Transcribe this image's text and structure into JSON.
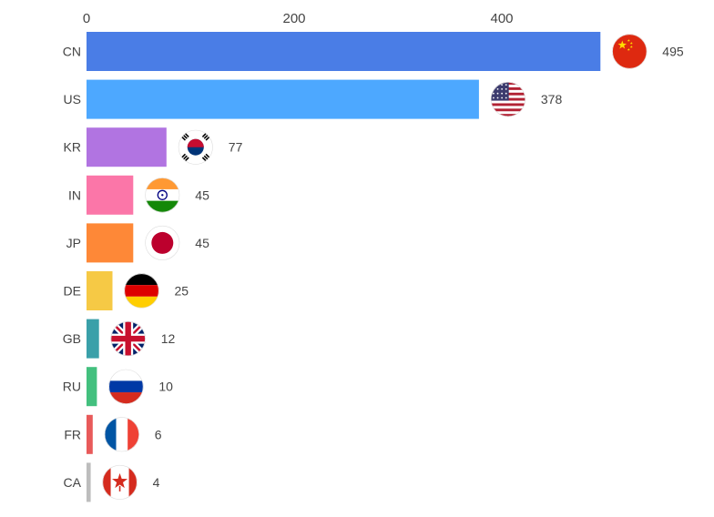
{
  "chart_data": {
    "type": "bar",
    "orientation": "horizontal",
    "title": "",
    "xlabel": "",
    "ylabel": "",
    "xlim": [
      0,
      495
    ],
    "x_ticks": [
      "0",
      "200",
      "400"
    ],
    "grid": false,
    "legend": "none",
    "categories": [
      "CN",
      "US",
      "KR",
      "IN",
      "JP",
      "DE",
      "GB",
      "RU",
      "FR",
      "CA"
    ],
    "values": [
      495,
      378,
      77,
      45,
      45,
      25,
      12,
      10,
      6,
      4
    ],
    "value_labels": [
      "495",
      "378",
      "77",
      "45",
      "45",
      "25",
      "12",
      "10",
      "6",
      "4"
    ],
    "colors": [
      "#4a7de6",
      "#4da8ff",
      "#b174e1",
      "#fb76a8",
      "#fe8837",
      "#f6c945",
      "#3aa0a9",
      "#43c07e",
      "#e85a5a",
      "#bdbdbd"
    ],
    "flag_icons": [
      "china-flag-icon",
      "usa-flag-icon",
      "south-korea-flag-icon",
      "india-flag-icon",
      "japan-flag-icon",
      "germany-flag-icon",
      "uk-flag-icon",
      "russia-flag-icon",
      "france-flag-icon",
      "canada-flag-icon"
    ]
  }
}
